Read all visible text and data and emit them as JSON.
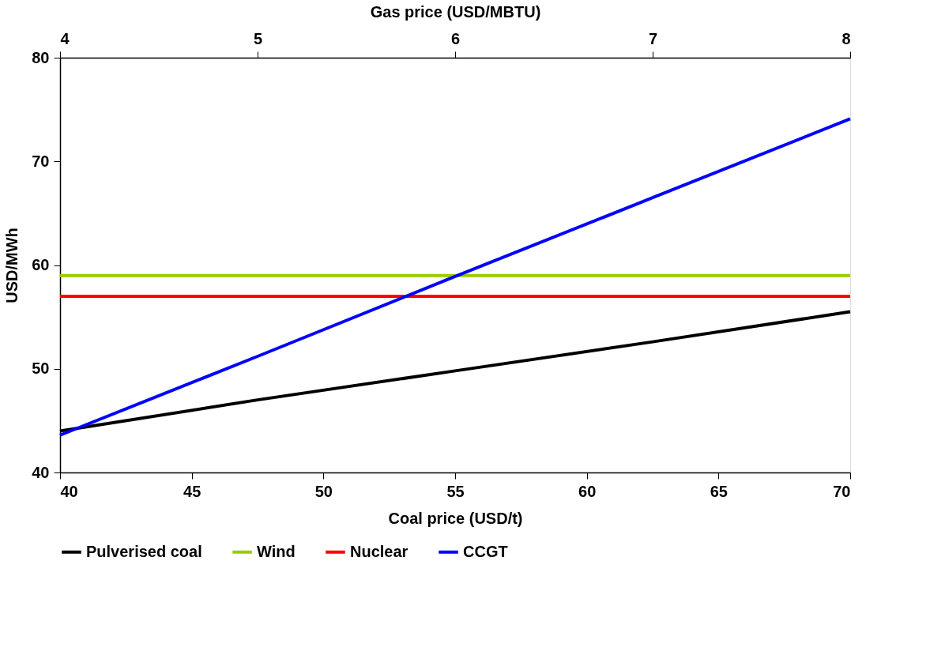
{
  "chart_data": {
    "type": "line",
    "xlabel": "Coal price (USD/t)",
    "x2label": "Gas price (USD/MBTU)",
    "ylabel": "USD/MWh",
    "xlim": [
      40,
      70
    ],
    "xticks": [
      40,
      45,
      50,
      55,
      60,
      65,
      70
    ],
    "x2lim": [
      4,
      8
    ],
    "x2ticks": [
      4,
      5,
      6,
      7,
      8
    ],
    "ylim": [
      40,
      80
    ],
    "yticks": [
      40,
      50,
      60,
      70,
      80
    ],
    "grid": false,
    "legend": "bottom",
    "marker": "none",
    "line_style": "solid",
    "series": [
      {
        "name": "Pulverised coal",
        "color": "#000000",
        "x": [
          40,
          47.5,
          55,
          62.5,
          70
        ],
        "values": [
          44,
          47,
          49.8,
          52.6,
          55.5
        ]
      },
      {
        "name": "Wind",
        "color": "#99cc00",
        "x": [
          40,
          70
        ],
        "values": [
          59,
          59
        ]
      },
      {
        "name": "Nuclear",
        "color": "#ff0000",
        "x": [
          40,
          70
        ],
        "values": [
          57,
          57
        ]
      },
      {
        "name": "CCGT",
        "color": "#0000ff",
        "axis": "x2",
        "x": [
          4,
          5,
          6,
          7,
          8
        ],
        "values": [
          43.6,
          51.2,
          58.9,
          66.5,
          74.1
        ]
      }
    ]
  }
}
